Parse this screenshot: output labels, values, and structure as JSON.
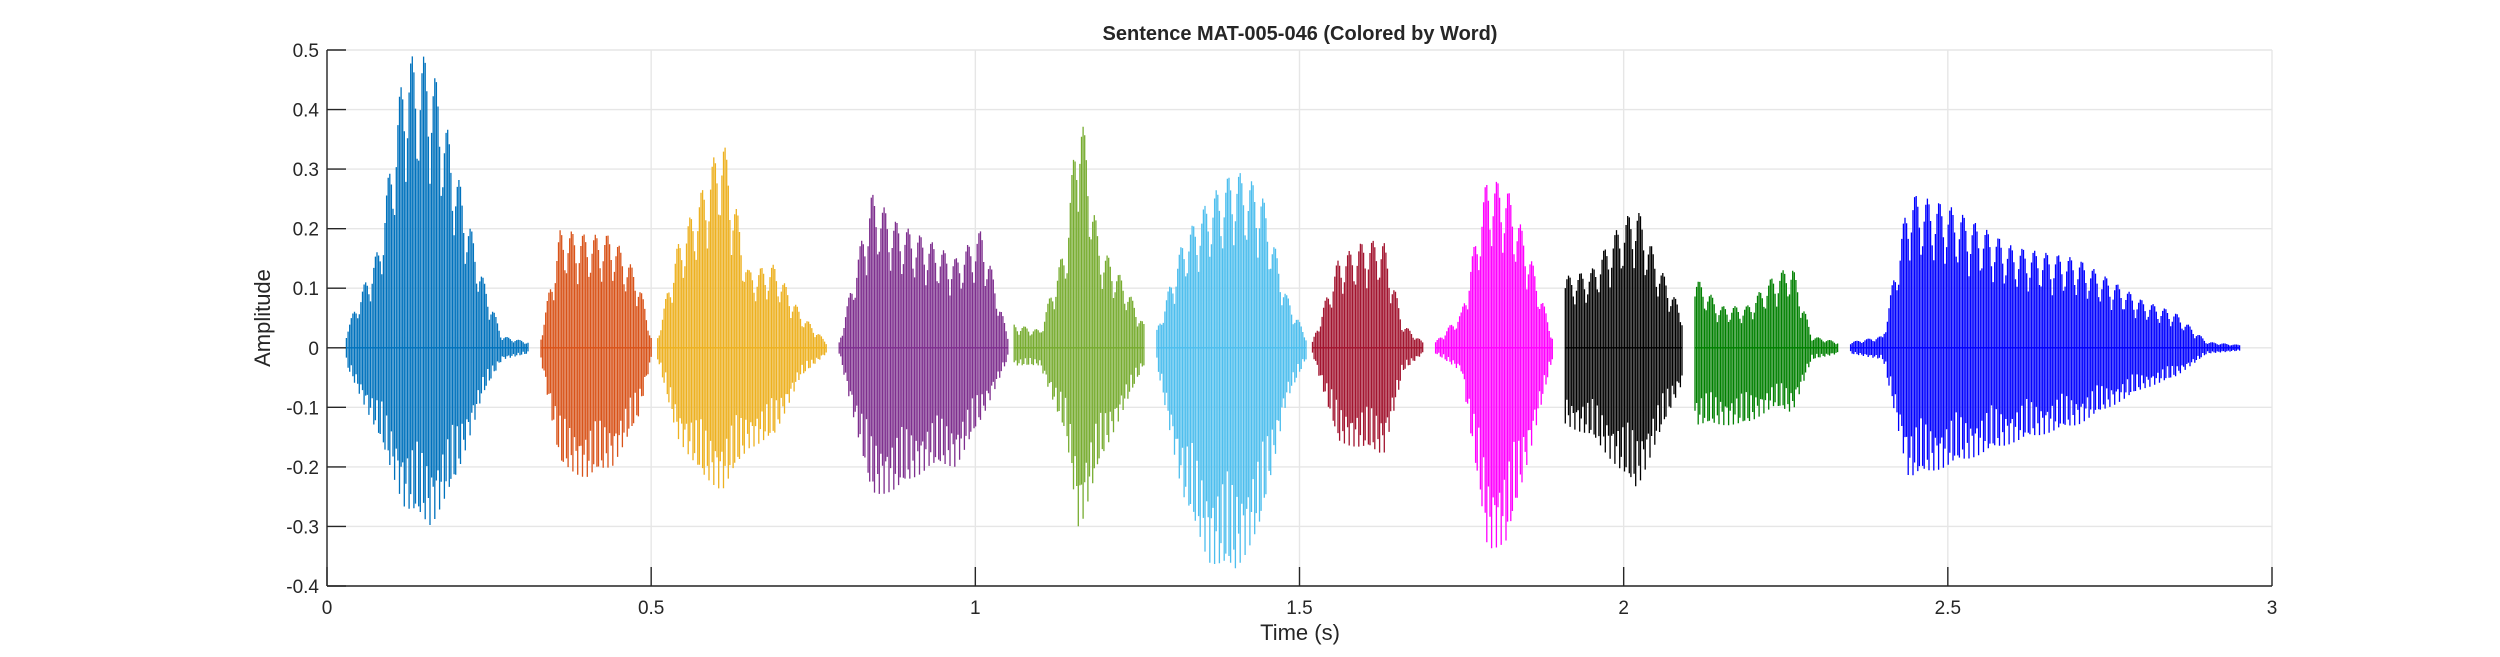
{
  "chart_data": {
    "type": "line",
    "title": "Sentence MAT-005-046 (Colored by Word)",
    "xlabel": "Time (s)",
    "ylabel": "Amplitude",
    "xlim": [
      0,
      3
    ],
    "ylim": [
      -0.4,
      0.5
    ],
    "grid": true,
    "xticks": [
      0,
      0.5,
      1,
      1.5,
      2,
      2.5,
      3
    ],
    "xtick_labels": [
      "0",
      "0.5",
      "1",
      "1.5",
      "2",
      "2.5",
      "3"
    ],
    "yticks": [
      -0.4,
      -0.3,
      -0.2,
      -0.1,
      0,
      0.1,
      0.2,
      0.3,
      0.4,
      0.5
    ],
    "ytick_labels": [
      "-0.4",
      "-0.3",
      "-0.2",
      "-0.1",
      "0",
      "0.1",
      "0.2",
      "0.3",
      "0.4",
      "0.5"
    ],
    "series": [
      {
        "color": "#0072BD",
        "x": [
          0.03,
          0.08,
          0.12,
          0.16,
          0.2,
          0.24,
          0.27,
          0.31
        ],
        "ymax": [
          0.03,
          0.17,
          0.49,
          0.49,
          0.3,
          0.12,
          0.02,
          0.01
        ],
        "ymin": [
          -0.03,
          -0.15,
          -0.27,
          -0.3,
          -0.22,
          -0.08,
          -0.02,
          -0.01
        ]
      },
      {
        "color": "#D95319",
        "x": [
          0.33,
          0.36,
          0.4,
          0.44,
          0.48,
          0.5
        ],
        "ymax": [
          0.02,
          0.2,
          0.19,
          0.19,
          0.12,
          0.02
        ],
        "ymin": [
          -0.02,
          -0.2,
          -0.22,
          -0.2,
          -0.12,
          -0.02
        ]
      },
      {
        "color": "#EDB120",
        "x": [
          0.51,
          0.54,
          0.58,
          0.61,
          0.65,
          0.69,
          0.73,
          0.77
        ],
        "ymax": [
          0.02,
          0.17,
          0.27,
          0.36,
          0.13,
          0.14,
          0.06,
          0.01
        ],
        "ymin": [
          -0.02,
          -0.15,
          -0.22,
          -0.24,
          -0.17,
          -0.15,
          -0.05,
          -0.01
        ]
      },
      {
        "color": "#7E2F8E",
        "x": [
          0.79,
          0.84,
          0.88,
          0.93,
          0.97,
          1.01,
          1.05
        ],
        "ymax": [
          0.01,
          0.26,
          0.21,
          0.18,
          0.15,
          0.2,
          0.02
        ],
        "ymin": [
          -0.01,
          -0.25,
          -0.24,
          -0.2,
          -0.2,
          -0.12,
          -0.02
        ]
      },
      {
        "color": "#77AC30",
        "x": [
          1.06,
          1.1,
          1.14,
          1.16,
          1.19,
          1.23,
          1.26
        ],
        "ymax": [
          0.04,
          0.03,
          0.18,
          0.43,
          0.18,
          0.11,
          0.04
        ],
        "ymin": [
          -0.03,
          -0.03,
          -0.15,
          -0.31,
          -0.2,
          -0.1,
          -0.03
        ]
      },
      {
        "color": "#4DBEEE",
        "x": [
          1.28,
          1.32,
          1.36,
          1.4,
          1.44,
          1.48,
          1.51
        ],
        "ymax": [
          0.03,
          0.18,
          0.25,
          0.3,
          0.27,
          0.09,
          0.02
        ],
        "ymin": [
          -0.03,
          -0.25,
          -0.36,
          -0.38,
          -0.3,
          -0.09,
          -0.02
        ]
      },
      {
        "color": "#A2142F",
        "x": [
          1.52,
          1.56,
          1.6,
          1.63,
          1.66,
          1.69
        ],
        "ymax": [
          0.01,
          0.15,
          0.18,
          0.18,
          0.04,
          0.01
        ],
        "ymin": [
          -0.01,
          -0.16,
          -0.17,
          -0.18,
          -0.04,
          -0.01
        ]
      },
      {
        "color": "#FF00FF",
        "x": [
          1.71,
          1.75,
          1.79,
          1.82,
          1.85,
          1.89
        ],
        "ymax": [
          0.01,
          0.06,
          0.29,
          0.27,
          0.18,
          0.02
        ],
        "ymin": [
          -0.01,
          -0.04,
          -0.34,
          -0.33,
          -0.2,
          -0.02
        ]
      },
      {
        "color": "#000000",
        "x": [
          1.91,
          1.95,
          1.99,
          2.02,
          2.05,
          2.09
        ],
        "ymax": [
          0.12,
          0.13,
          0.2,
          0.24,
          0.15,
          0.06
        ],
        "ymin": [
          -0.13,
          -0.15,
          -0.2,
          -0.24,
          -0.16,
          -0.06
        ]
      },
      {
        "color": "#008000",
        "x": [
          2.11,
          2.15,
          2.19,
          2.23,
          2.26,
          2.29,
          2.33
        ],
        "ymax": [
          0.12,
          0.07,
          0.07,
          0.12,
          0.14,
          0.02,
          0.01
        ],
        "ymin": [
          -0.13,
          -0.13,
          -0.13,
          -0.1,
          -0.11,
          -0.02,
          -0.01
        ]
      },
      {
        "color": "#0000FF",
        "x": [
          2.35,
          2.4,
          2.44,
          2.5,
          2.6,
          2.7,
          2.8,
          2.85,
          2.9,
          2.95
        ],
        "ymax": [
          0.01,
          0.02,
          0.26,
          0.24,
          0.17,
          0.15,
          0.08,
          0.06,
          0.01,
          0.005
        ],
        "ymin": [
          -0.01,
          -0.02,
          -0.22,
          -0.2,
          -0.16,
          -0.13,
          -0.07,
          -0.05,
          -0.01,
          -0.005
        ]
      }
    ]
  }
}
